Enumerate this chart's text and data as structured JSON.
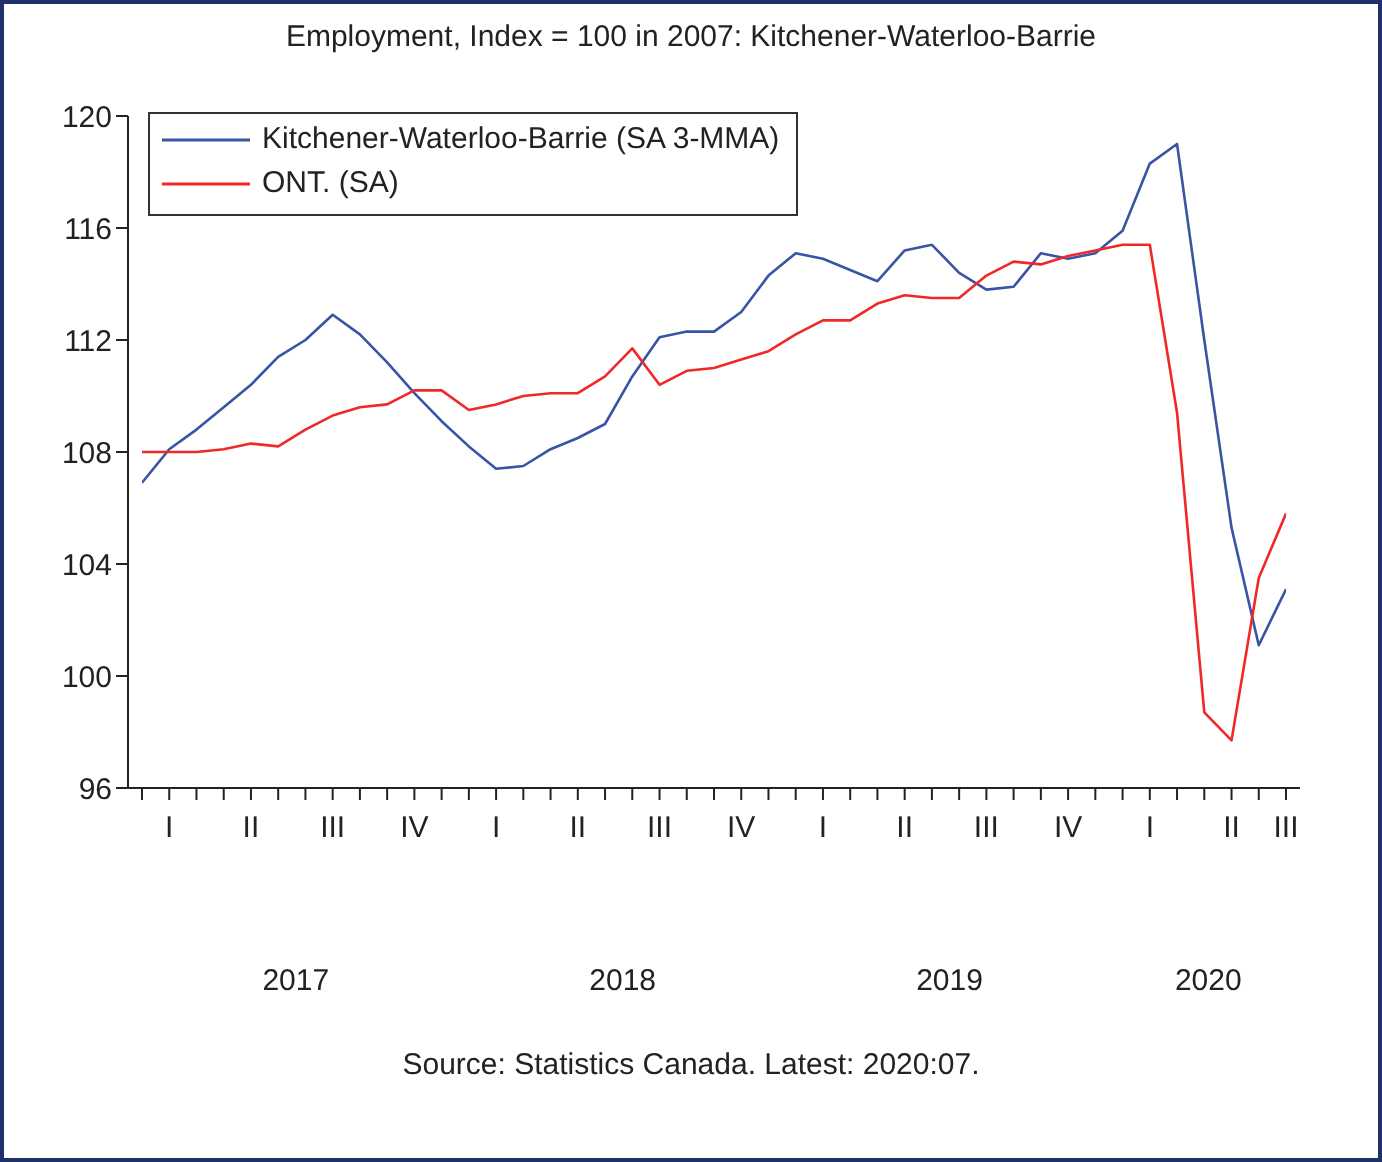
{
  "chart_data": {
    "type": "line",
    "title": "Employment, Index = 100 in 2007: Kitchener-Waterloo-Barrie",
    "categories": [
      null,
      "I",
      null,
      null,
      "II",
      null,
      null,
      "III",
      null,
      null,
      "IV",
      null,
      null,
      "I",
      null,
      null,
      "II",
      null,
      null,
      "III",
      null,
      null,
      "IV",
      null,
      null,
      "I",
      null,
      null,
      "II",
      null,
      null,
      "III",
      null,
      null,
      "IV",
      null,
      null,
      "I",
      null,
      null,
      "II",
      null,
      "III"
    ],
    "series": [
      {
        "name": "Kitchener-Waterloo-Barrie (SA 3-MMA)",
        "color": "#3a54a4",
        "values": [
          106.9,
          108.1,
          108.8,
          109.6,
          110.4,
          111.4,
          112.0,
          112.9,
          112.2,
          111.2,
          110.1,
          109.1,
          108.2,
          107.4,
          107.5,
          108.1,
          108.5,
          109.0,
          110.7,
          112.1,
          112.3,
          112.3,
          113.0,
          114.3,
          115.1,
          114.9,
          114.5,
          114.1,
          115.2,
          115.4,
          114.4,
          113.8,
          113.9,
          115.1,
          114.9,
          115.1,
          115.9,
          118.3,
          119.0,
          112.0,
          105.3,
          101.1,
          103.1
        ]
      },
      {
        "name": "ONT. (SA)",
        "color": "#f02828",
        "values": [
          108.0,
          108.0,
          108.0,
          108.1,
          108.3,
          108.2,
          108.8,
          109.3,
          109.6,
          109.7,
          110.2,
          110.2,
          109.5,
          109.7,
          110.0,
          110.1,
          110.1,
          110.7,
          111.7,
          110.4,
          110.9,
          111.0,
          111.3,
          111.6,
          112.2,
          112.7,
          112.7,
          113.3,
          113.6,
          113.5,
          113.5,
          114.3,
          114.8,
          114.7,
          115.0,
          115.2,
          115.4,
          115.4,
          109.4,
          98.7,
          97.7,
          103.5,
          105.8
        ]
      }
    ],
    "ylim": [
      96,
      120
    ],
    "yticks": [
      96,
      100,
      104,
      108,
      112,
      116,
      120
    ],
    "grid": false,
    "legend": "top left",
    "marker": "none",
    "line_style": "solid",
    "annotations": [
      "2017",
      "2018",
      "2019",
      "2020",
      "Source: Statistics Canada. Latest: 2020:07."
    ]
  }
}
